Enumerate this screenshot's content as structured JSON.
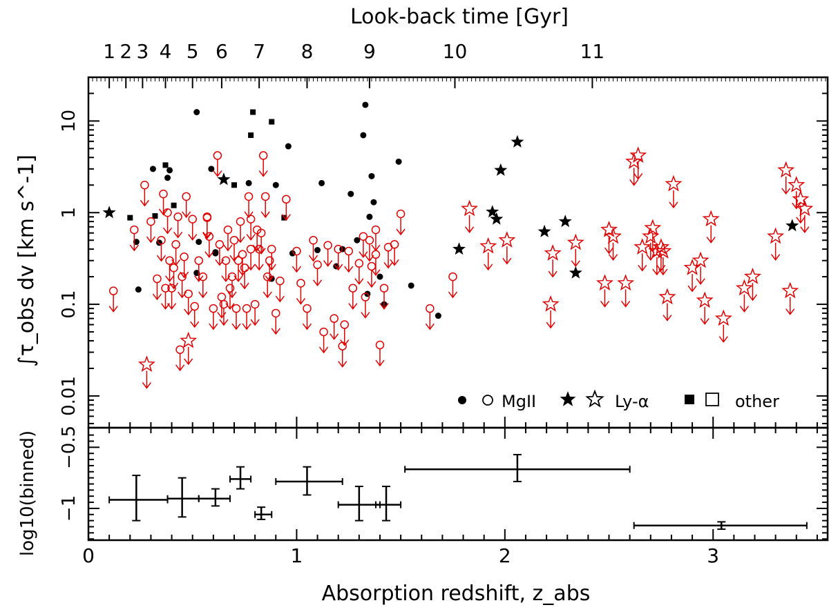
{
  "chart_data": [
    {
      "type": "scatter",
      "name": "main",
      "ylabel": "∫τ_obs dv [km s^-1]",
      "xlabel": "",
      "top_axis_title": "Look-back time [Gyr]",
      "top_axis_ticks": [
        {
          "label": "1",
          "z": 0.1
        },
        {
          "label": "2",
          "z": 0.18
        },
        {
          "label": "3",
          "z": 0.26
        },
        {
          "label": "4",
          "z": 0.37
        },
        {
          "label": "5",
          "z": 0.5
        },
        {
          "label": "6",
          "z": 0.64
        },
        {
          "label": "7",
          "z": 0.82
        },
        {
          "label": "8",
          "z": 1.05
        },
        {
          "label": "9",
          "z": 1.35
        },
        {
          "label": "10",
          "z": 1.76
        },
        {
          "label": "11",
          "z": 2.42
        }
      ],
      "xlim": [
        0,
        3.55
      ],
      "ylim": [
        0.0045,
        30
      ],
      "yscale": "log",
      "y_ticks": [
        {
          "label": "0.01",
          "v": 0.01
        },
        {
          "label": "0.1",
          "v": 0.1
        },
        {
          "label": "1",
          "v": 1
        },
        {
          "label": "10",
          "v": 10
        }
      ],
      "legend": {
        "position": "bottom-right",
        "mgii": "MgII",
        "lya": "Ly-α",
        "other": "other"
      },
      "series": [
        {
          "name": "MgII detections",
          "marker": "filled-circle",
          "color": "#000000",
          "x": [
            0.23,
            0.24,
            0.31,
            0.34,
            0.38,
            0.39,
            0.52,
            0.53,
            0.52,
            0.59,
            0.61,
            0.77,
            0.96,
            0.98,
            1.12,
            1.19,
            1.22,
            1.26,
            1.29,
            1.32,
            1.33,
            1.34,
            1.35,
            1.36,
            1.37,
            1.4,
            1.42,
            1.49,
            1.55,
            1.68,
            0.9,
            0.61,
            0.88,
            1.1
          ],
          "y": [
            0.48,
            0.145,
            3.0,
            0.47,
            2.4,
            2.9,
            12.5,
            0.48,
            0.22,
            3.0,
            0.36,
            2.1,
            5.3,
            0.36,
            2.1,
            0.26,
            0.4,
            1.6,
            0.5,
            7.0,
            15.0,
            0.13,
            0.9,
            2.5,
            1.3,
            0.2,
            0.1,
            3.6,
            0.16,
            0.075,
            2.0,
            0.37,
            0.19,
            0.39
          ]
        },
        {
          "name": "Ly-alpha detections",
          "marker": "filled-star",
          "color": "#000000",
          "x": [
            0.1,
            0.65,
            1.78,
            1.94,
            1.96,
            1.98,
            2.06,
            2.19,
            2.29,
            2.34,
            3.38
          ],
          "y": [
            1.0,
            2.3,
            0.4,
            1.02,
            0.85,
            2.9,
            5.9,
            0.62,
            0.8,
            0.22,
            0.72
          ]
        },
        {
          "name": "Other detections",
          "marker": "filled-square",
          "color": "#000000",
          "x": [
            0.2,
            0.32,
            0.37,
            0.41,
            0.7,
            0.78,
            0.79,
            0.88,
            0.94
          ],
          "y": [
            0.88,
            0.92,
            3.3,
            1.2,
            2.0,
            7.0,
            12.5,
            9.8,
            0.88
          ]
        },
        {
          "name": "MgII upper limits",
          "marker": "open-circle-arrow",
          "color": "#e00000",
          "x": [
            0.12,
            0.22,
            0.27,
            0.3,
            0.33,
            0.35,
            0.36,
            0.37,
            0.38,
            0.39,
            0.4,
            0.42,
            0.43,
            0.45,
            0.46,
            0.47,
            0.48,
            0.5,
            0.51,
            0.53,
            0.55,
            0.57,
            0.58,
            0.6,
            0.62,
            0.63,
            0.65,
            0.66,
            0.67,
            0.68,
            0.7,
            0.71,
            0.72,
            0.73,
            0.75,
            0.76,
            0.77,
            0.78,
            0.8,
            0.81,
            0.82,
            0.84,
            0.85,
            0.86,
            0.88,
            0.9,
            0.92,
            0.95,
            1.0,
            1.02,
            1.05,
            1.08,
            1.1,
            1.13,
            1.15,
            1.18,
            1.2,
            1.22,
            1.25,
            1.27,
            1.3,
            1.32,
            1.33,
            1.35,
            1.36,
            1.38,
            1.4,
            1.42,
            1.44,
            1.47,
            1.5,
            1.64,
            1.75,
            0.64,
            0.74,
            0.83,
            0.44,
            0.41,
            0.57,
            0.69,
            0.78,
            0.87,
            1.23,
            1.38
          ],
          "y": [
            0.14,
            0.65,
            2.0,
            0.8,
            0.19,
            0.5,
            1.6,
            0.15,
            1.0,
            0.3,
            0.15,
            0.45,
            0.9,
            0.2,
            0.33,
            1.5,
            0.13,
            0.85,
            0.095,
            0.3,
            0.2,
            0.9,
            0.55,
            0.09,
            4.2,
            0.45,
            0.1,
            0.3,
            0.65,
            0.15,
            0.5,
            0.09,
            0.3,
            0.8,
            0.25,
            0.09,
            1.5,
            0.4,
            0.1,
            0.65,
            0.4,
            4.2,
            1.5,
            0.2,
            0.4,
            0.08,
            0.18,
            1.4,
            0.38,
            0.17,
            0.09,
            0.5,
            0.27,
            0.05,
            0.44,
            0.07,
            0.4,
            0.035,
            0.38,
            0.15,
            0.28,
            0.55,
            0.12,
            0.5,
            0.26,
            0.35,
            0.036,
            0.15,
            0.42,
            0.45,
            0.97,
            0.09,
            0.2,
            0.12,
            0.35,
            0.6,
            0.032,
            0.25,
            0.88,
            0.2,
            0.85,
            0.3,
            0.06,
            0.65
          ]
        },
        {
          "name": "Ly-alpha upper limits",
          "marker": "open-star-arrow",
          "color": "#e00000",
          "x": [
            0.28,
            0.48,
            1.83,
            1.92,
            2.01,
            2.22,
            2.23,
            2.34,
            2.48,
            2.5,
            2.52,
            2.58,
            2.62,
            2.64,
            2.66,
            2.7,
            2.71,
            2.73,
            2.75,
            2.76,
            2.78,
            2.81,
            2.9,
            2.94,
            2.96,
            2.99,
            3.05,
            3.15,
            3.19,
            3.3,
            3.35,
            3.37,
            3.4,
            3.42,
            3.44
          ],
          "y": [
            0.022,
            0.04,
            1.1,
            0.43,
            0.5,
            0.1,
            0.36,
            0.47,
            0.17,
            0.65,
            0.55,
            0.17,
            3.6,
            4.2,
            0.42,
            0.55,
            0.68,
            0.38,
            0.42,
            0.38,
            0.12,
            2.05,
            0.25,
            0.3,
            0.11,
            0.85,
            0.07,
            0.15,
            0.2,
            0.55,
            2.9,
            0.14,
            2.0,
            1.4,
            1.1
          ]
        }
      ]
    },
    {
      "type": "scatter",
      "name": "binned",
      "ylabel": "log10(binned)",
      "xlabel": "Absorption redshift, z_abs",
      "xlim": [
        0,
        3.55
      ],
      "ylim": [
        -1.26,
        -0.34
      ],
      "y_ticks": [
        {
          "label": "−0.5",
          "v": -0.5
        },
        {
          "label": "−1",
          "v": -1
        }
      ],
      "x_ticks": [
        {
          "label": "0",
          "v": 0
        },
        {
          "label": "1",
          "v": 1
        },
        {
          "label": "2",
          "v": 2
        },
        {
          "label": "3",
          "v": 3
        }
      ],
      "points": [
        {
          "x": 0.23,
          "xmin": 0.1,
          "xmax": 0.38,
          "y": -0.93,
          "ylo": -1.1,
          "yhi": -0.73
        },
        {
          "x": 0.45,
          "xmin": 0.38,
          "xmax": 0.53,
          "y": -0.92,
          "ylo": -1.07,
          "yhi": -0.75
        },
        {
          "x": 0.61,
          "xmin": 0.53,
          "xmax": 0.68,
          "y": -0.92,
          "ylo": -0.98,
          "yhi": -0.84
        },
        {
          "x": 0.73,
          "xmin": 0.68,
          "xmax": 0.78,
          "y": -0.76,
          "ylo": -0.84,
          "yhi": -0.66
        },
        {
          "x": 0.83,
          "xmin": 0.8,
          "xmax": 0.88,
          "y": -1.05,
          "ylo": -1.09,
          "yhi": -0.99
        },
        {
          "x": 1.05,
          "xmin": 0.9,
          "xmax": 1.22,
          "y": -0.78,
          "ylo": -0.89,
          "yhi": -0.66
        },
        {
          "x": 1.3,
          "xmin": 1.2,
          "xmax": 1.4,
          "y": -0.97,
          "ylo": -1.1,
          "yhi": -0.82
        },
        {
          "x": 1.43,
          "xmin": 1.38,
          "xmax": 1.5,
          "y": -0.97,
          "ylo": -1.1,
          "yhi": -0.82
        },
        {
          "x": 2.06,
          "xmin": 1.52,
          "xmax": 2.6,
          "y": -0.68,
          "ylo": -0.78,
          "yhi": -0.56
        },
        {
          "x": 3.04,
          "xmin": 2.62,
          "xmax": 3.45,
          "y": -1.14,
          "ylo": -1.17,
          "yhi": -1.11
        }
      ]
    }
  ]
}
